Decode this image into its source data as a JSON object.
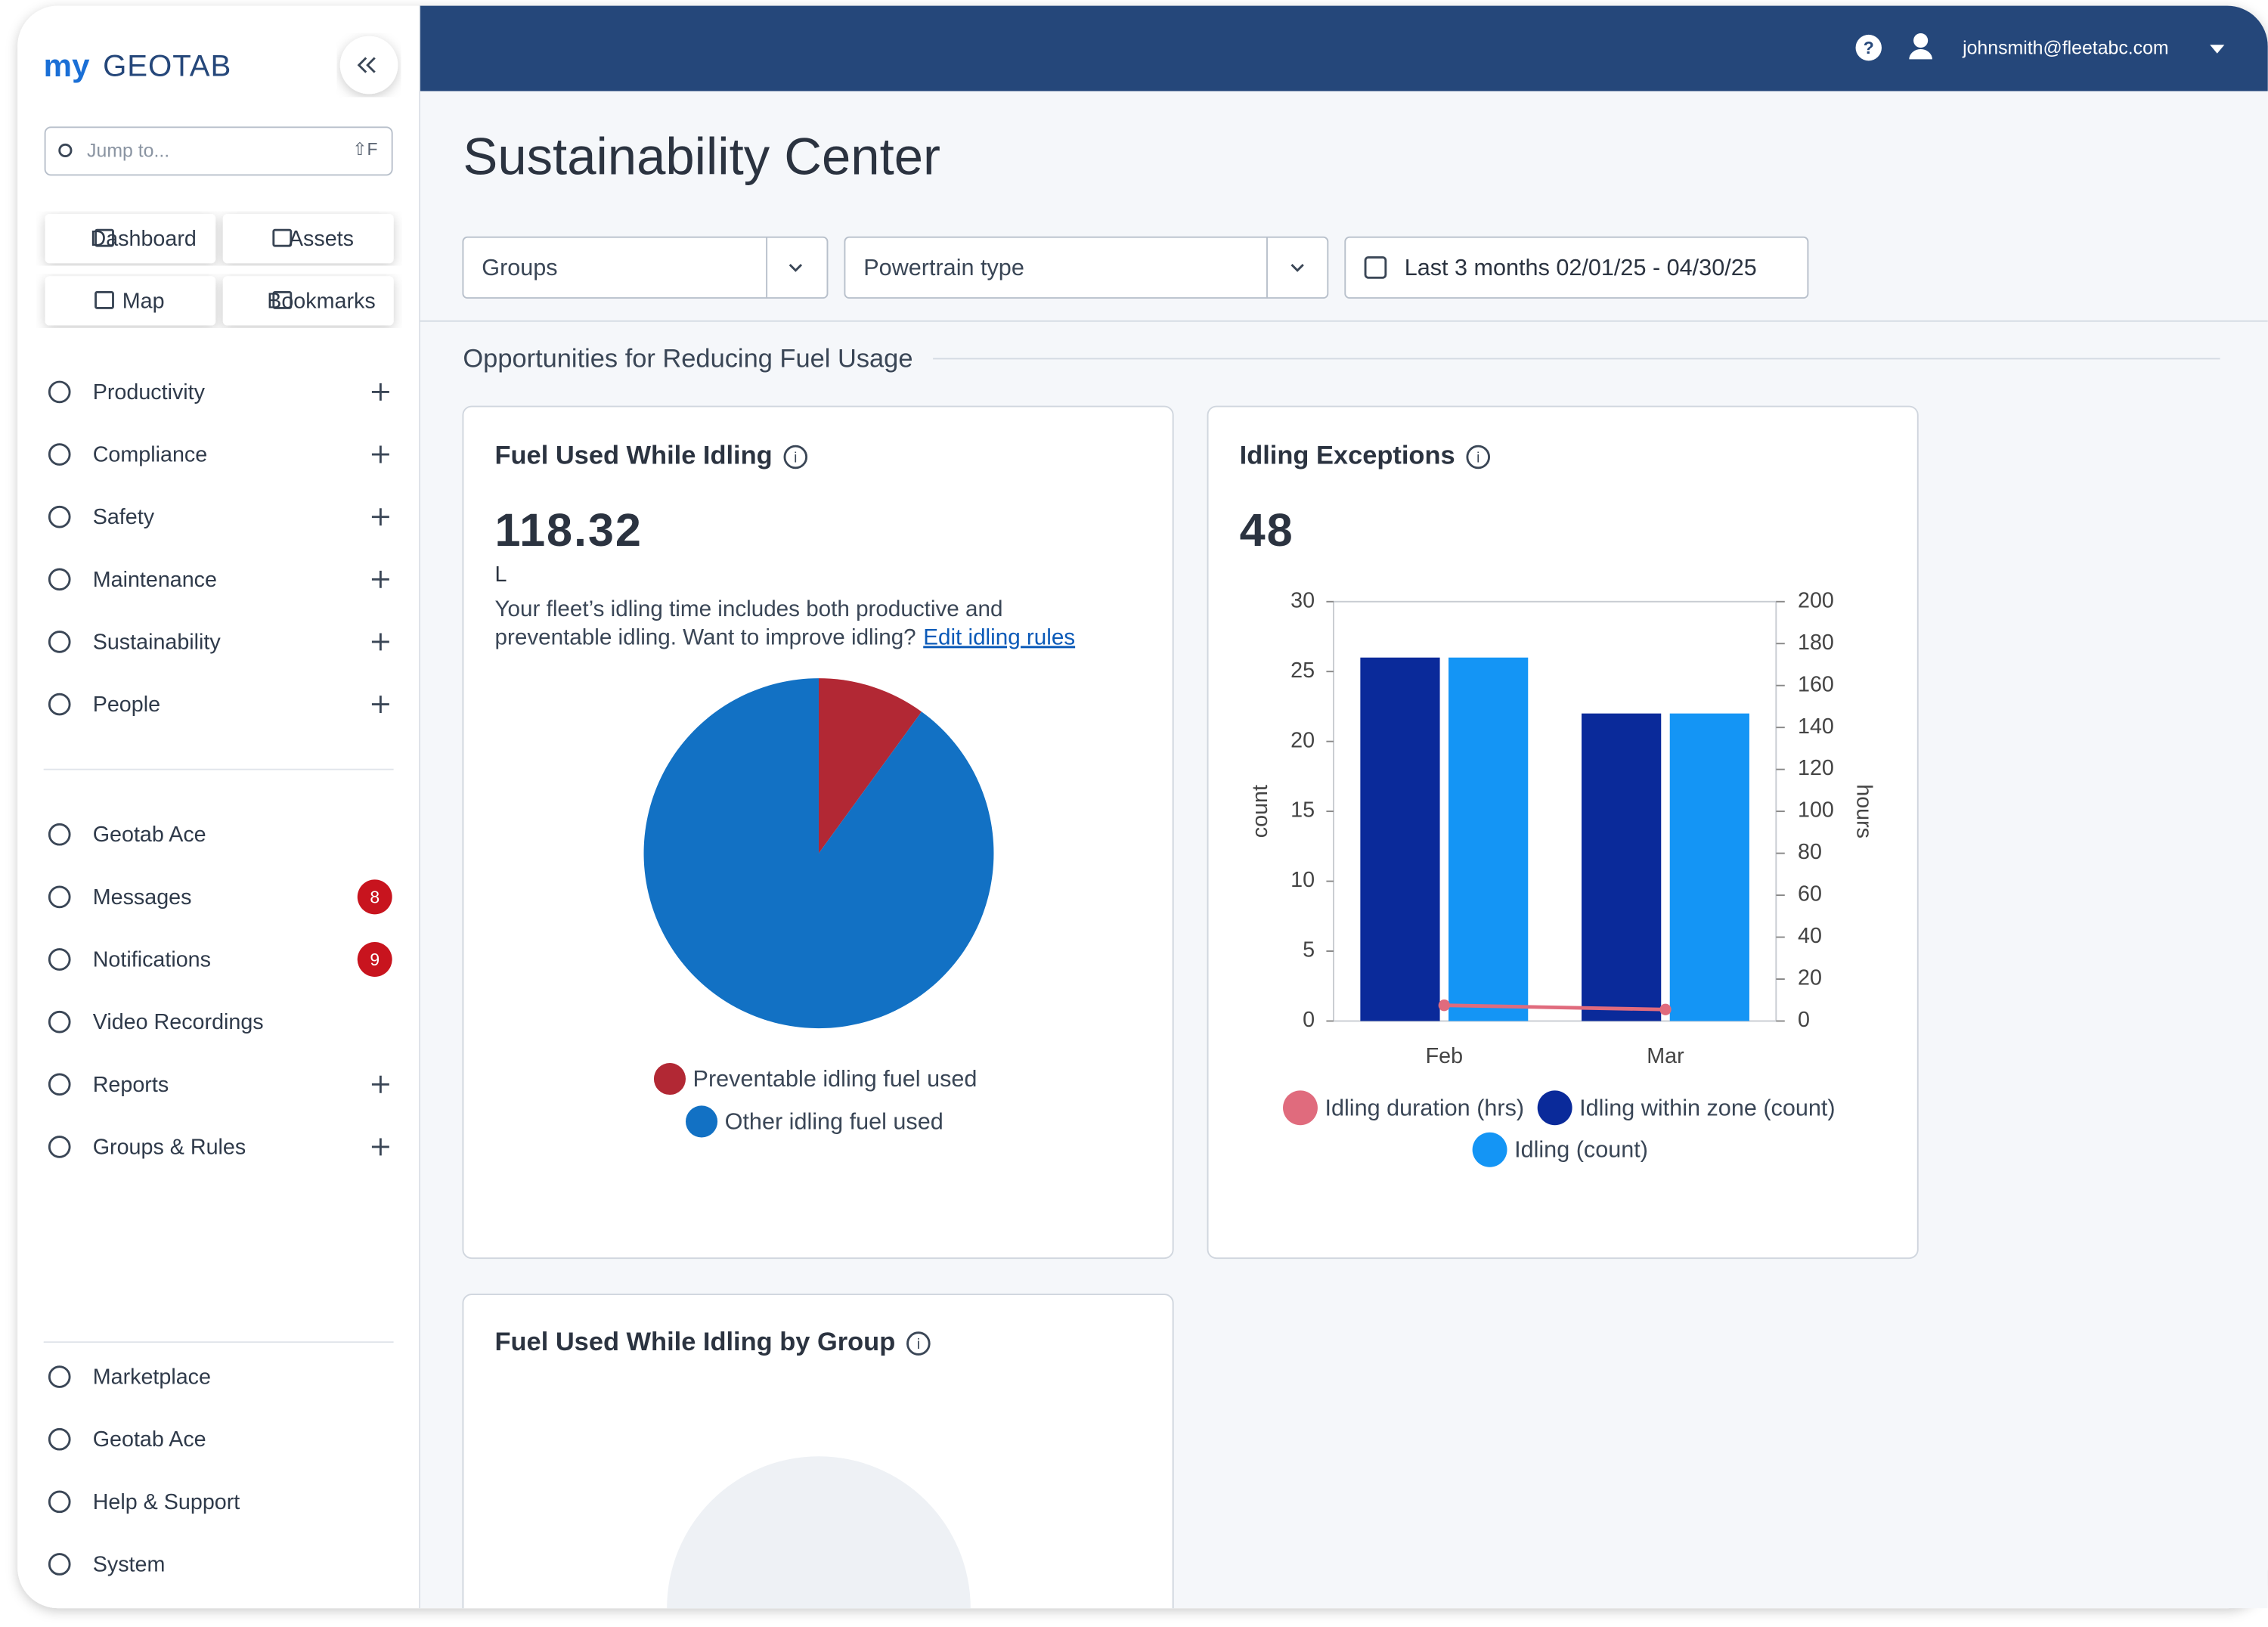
{
  "header": {
    "logo_prefix": "my",
    "logo_name": "GEOTAB",
    "user_email": "johnsmith@fleetabc.com"
  },
  "sidebar": {
    "search_placeholder": "Jump to...",
    "search_shortcut": "⇧F",
    "quick_links": [
      "Dashboard",
      "Assets",
      "Map",
      "Bookmarks"
    ],
    "main_nav": [
      {
        "label": "Productivity",
        "expandable": true
      },
      {
        "label": "Compliance",
        "expandable": true
      },
      {
        "label": "Safety",
        "expandable": true
      },
      {
        "label": "Maintenance",
        "expandable": true
      },
      {
        "label": "Sustainability",
        "expandable": true
      },
      {
        "label": "People",
        "expandable": true
      }
    ],
    "secondary_nav": [
      {
        "label": "Geotab Ace",
        "expandable": false
      },
      {
        "label": "Messages",
        "expandable": false,
        "badge": 8
      },
      {
        "label": "Notifications",
        "expandable": false,
        "badge": 9
      },
      {
        "label": "Video Recordings",
        "expandable": false
      },
      {
        "label": "Reports",
        "expandable": true
      },
      {
        "label": "Groups & Rules",
        "expandable": true
      }
    ],
    "footer_nav": [
      "Marketplace",
      "Geotab Ace",
      "Help & Support",
      "System"
    ]
  },
  "page": {
    "title": "Sustainability Center",
    "filters": {
      "groups": "Groups",
      "powertrain": "Powertrain type",
      "date_range": "Last 3 months 02/01/25 - 04/30/25"
    },
    "section_title": "Opportunities for Reducing Fuel Usage"
  },
  "cards": [
    {
      "title": "Fuel Used While Idling",
      "value": "118.32",
      "unit": "L",
      "description": [
        "Your fleet’s idling time includes both productive and",
        "preventable idling. Want to improve idling?"
      ],
      "link": "Edit idling rules",
      "chart": {
        "type": "pie",
        "categories": [
          "Preventable idling fuel used",
          "Other idling fuel used"
        ],
        "values": [
          10,
          90
        ],
        "colors": [
          "#b22834",
          "#1271c4"
        ]
      }
    },
    {
      "title": "Idling Exceptions",
      "value": "48",
      "chart": {
        "type": "bar",
        "categories": [
          "Feb",
          "Mar"
        ],
        "y_label": "count",
        "y2_label": "hours",
        "ylim": [
          0,
          30
        ],
        "yticks": [
          0,
          5,
          10,
          15,
          20,
          25,
          30
        ],
        "y2lim": [
          0,
          200
        ],
        "y2ticks": [
          0,
          20,
          40,
          60,
          80,
          100,
          120,
          140,
          160,
          180,
          200
        ],
        "series": [
          {
            "name": "Idling duration (hrs)",
            "type": "line",
            "axis": "y2",
            "color": "#e06b7d",
            "values": [
              7.5,
              5.5
            ]
          },
          {
            "name": "Idling within zone (count)",
            "color": "#0a2a9a",
            "values": [
              26,
              22
            ]
          },
          {
            "name": "Idling (count)",
            "color": "#1495f5",
            "values": [
              26,
              22
            ]
          }
        ]
      }
    },
    {
      "title": "Fuel Used While Idling by Group"
    }
  ]
}
